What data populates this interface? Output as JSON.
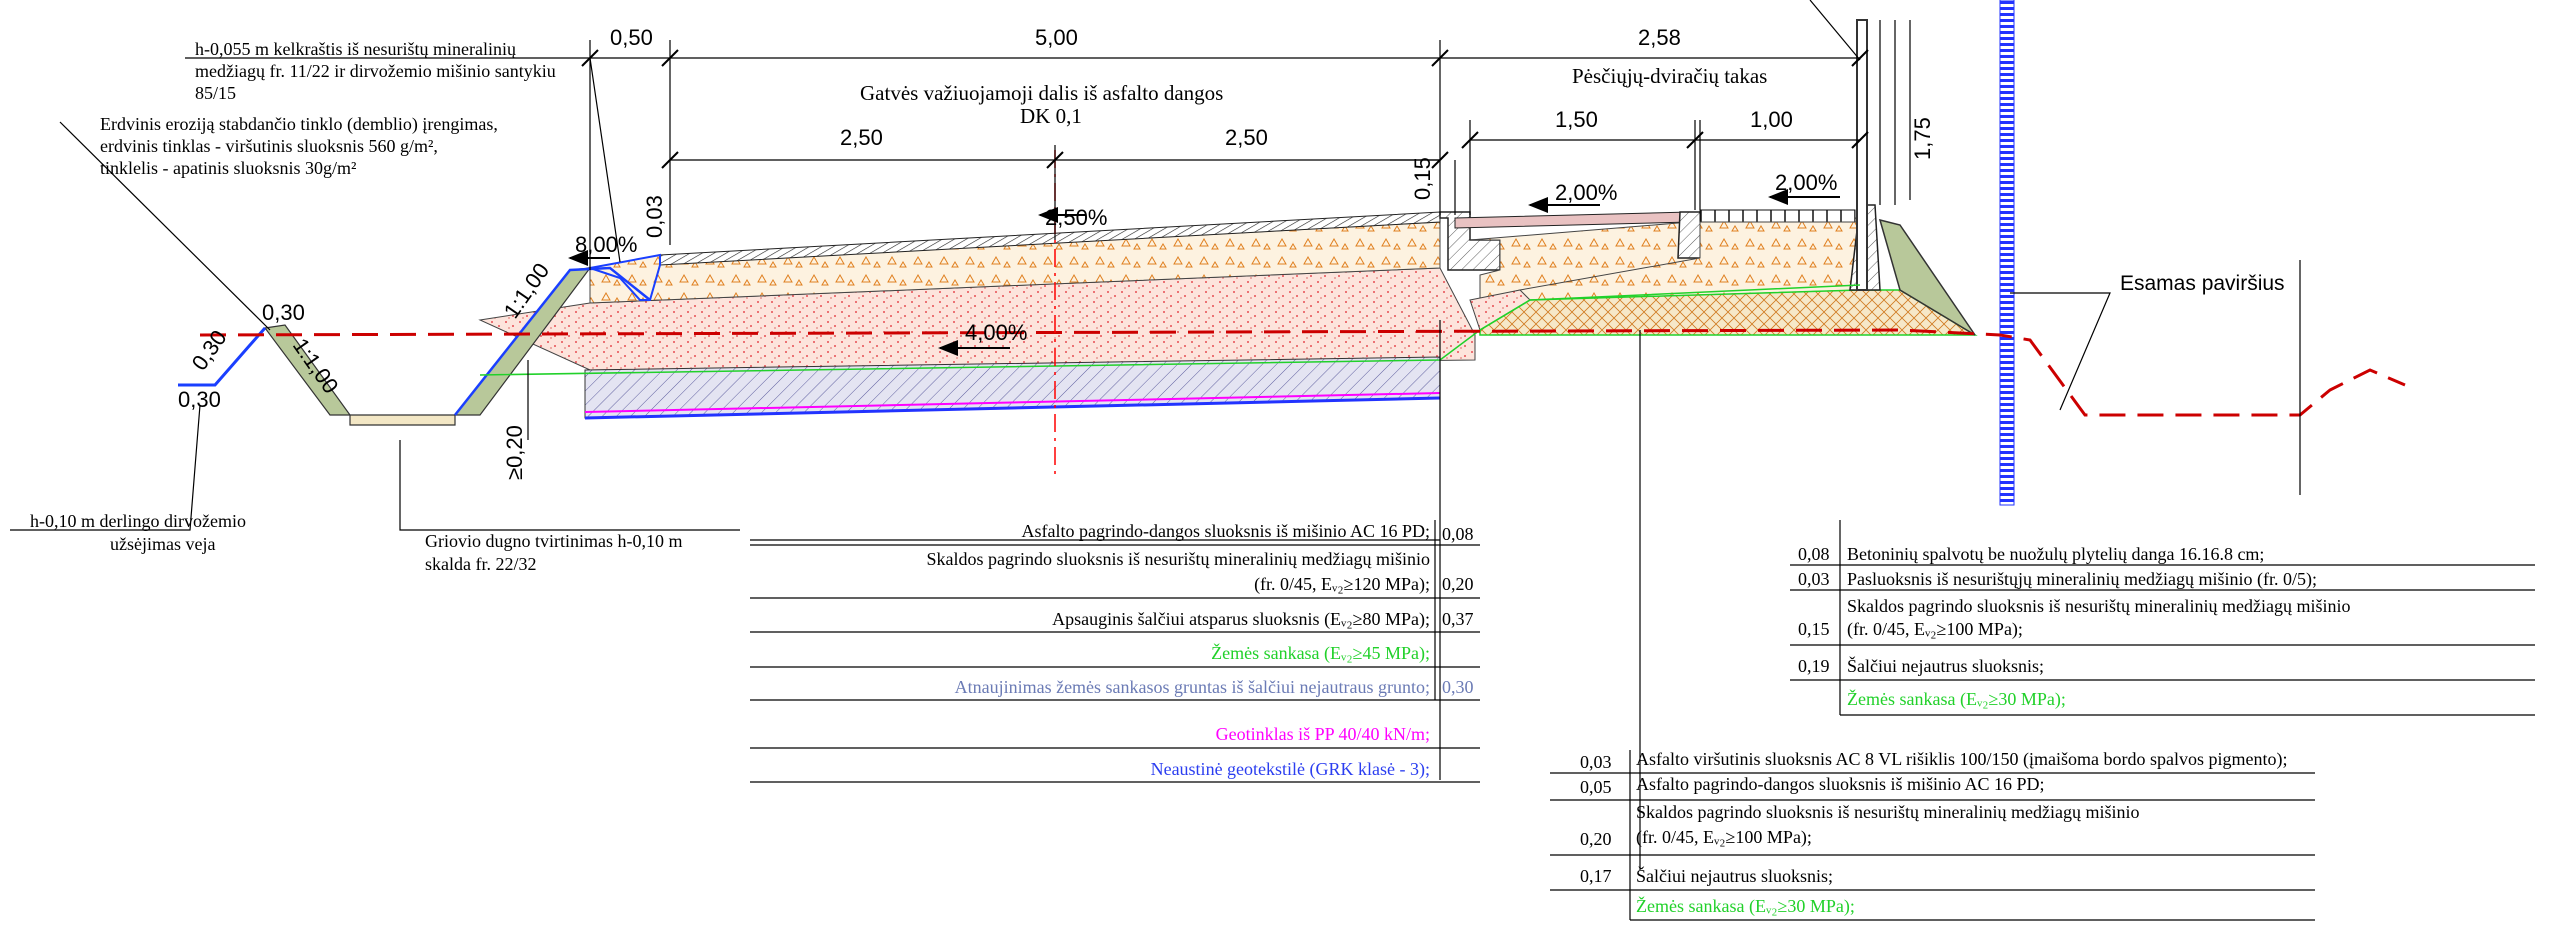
{
  "colors": {
    "green_label": "#21d12a",
    "blue_label": "#2b3ef0",
    "grey_blue_label": "#6b7bb5",
    "magenta_label": "#ff00ff",
    "axis_red": "#ff0000",
    "existing_surface": "#cc0000",
    "drain_blue": "#1a3fff"
  },
  "dims": {
    "d_050": "0,50",
    "d_500": "5,00",
    "d_258": "2,58",
    "d_250_left": "2,50",
    "d_250_right": "2,50",
    "d_150": "1,50",
    "d_100": "1,00",
    "d_175": "1,75",
    "d_015": "0,15",
    "d_003": "0,03",
    "d_030_top": "0,30",
    "d_030_slope": "0,30",
    "d_030_bottom": "0,30",
    "d_020": "≥0,20"
  },
  "slopes": {
    "s_800": "8,00%",
    "s_250": "2,50%",
    "s_400": "4,00%",
    "s_200_left": "2,00%",
    "s_200_right": "2,00%",
    "s_1100_left": "1:1,00",
    "s_1100_right": "1:1,00"
  },
  "titles": {
    "carriageway_1": "Gatvės važiuojamoji dalis iš asfalto dangos",
    "carriageway_2": "DK 0,1",
    "pedestrian": "Pėsčiųjų-dviračių takas",
    "existing": "Esamas paviršius"
  },
  "notes": {
    "edge_1": "h-0,055 m kelkraštis iš nesurištų mineralinių",
    "edge_2": "medžiagų  fr. 11/22 ir dirvožemio mišinio santykiu",
    "edge_3": "85/15",
    "erosion_1": "Erdvinis eroziją stabdančio tinklo (demblio) įrengimas,",
    "erosion_2": "erdvinis tinklas - viršutinis sluoksnis 560 g/m²,",
    "erosion_3": "tinklelis - apatinis sluoksnis 30g/m²",
    "soil_1": "h-0,10 m derlingo dirvožemio",
    "soil_2": "užsėjimas veja",
    "ditch_1": "Griovio dugno tvirtinimas h-0,10 m",
    "ditch_2": "skalda fr. 22/32"
  },
  "road_layers": {
    "l1_text": "Asfalto pagrindo-dangos sluoksnis iš mišinio AC 16 PD;",
    "l1_val": "0,08",
    "l2_text_1": "Skaldos pagrindo sluoksnis iš nesurištų mineralinių medžiagų mišinio",
    "l2_text_2": "(fr. 0/45, Eᵥ₂≥120 MPa);",
    "l2_val": "0,20",
    "l3_text": "Apsauginis šalčiui atsparus sluoksnis (Eᵥ₂≥80 MPa);",
    "l3_val": "0,37",
    "l4_text": "Žemės sankasa (Eᵥ₂≥45 MPa);",
    "l5_text": "Atnaujinimas žemės sankasos gruntas iš šalčiui nejautraus grunto;",
    "l5_val": "0,30",
    "l6_text": "Geotinklas iš PP 40/40 kN/m;",
    "l7_text": "Neaustinė geotekstilė (GRK klasė - 3);"
  },
  "path_layers": {
    "p1_val": "0,08",
    "p1_text": "Betoninių spalvotų be nuožulų plytelių danga 16.16.8 cm;",
    "p2_val": "0,03",
    "p2_text": "Pasluoksnis iš nesurištųjų mineralinių medžiagų mišinio (fr. 0/5);",
    "p3_val": "0,15",
    "p3_text_1": "Skaldos pagrindo sluoksnis iš nesurištų mineralinių medžiagų mišinio",
    "p3_text_2": "(fr. 0/45, Eᵥ₂≥100 MPa);",
    "p4_val": "0,19",
    "p4_text": "Šalčiui nejautrus sluoksnis;",
    "p5_text": "Žemės sankasa (Eᵥ₂≥30 MPa);"
  },
  "bike_layers": {
    "b1_val": "0,03",
    "b1_text": "Asfalto viršutinis sluoksnis AC 8 VL rišiklis 100/150  (įmaišoma bordo spalvos pigmento);",
    "b2_val": "0,05",
    "b2_text": "Asfalto pagrindo-dangos sluoksnis iš mišinio AC 16 PD;",
    "b3_val": "0,20",
    "b3_text_1": "Skaldos pagrindo sluoksnis iš nesurištų mineralinių medžiagų mišinio",
    "b3_text_2": "(fr. 0/45, Eᵥ₂≥100 MPa);",
    "b4_val": "0,17",
    "b4_text": "Šalčiui nejautrus sluoksnis;",
    "b5_text": "Žemės sankasa (Eᵥ₂≥30 MPa);"
  }
}
